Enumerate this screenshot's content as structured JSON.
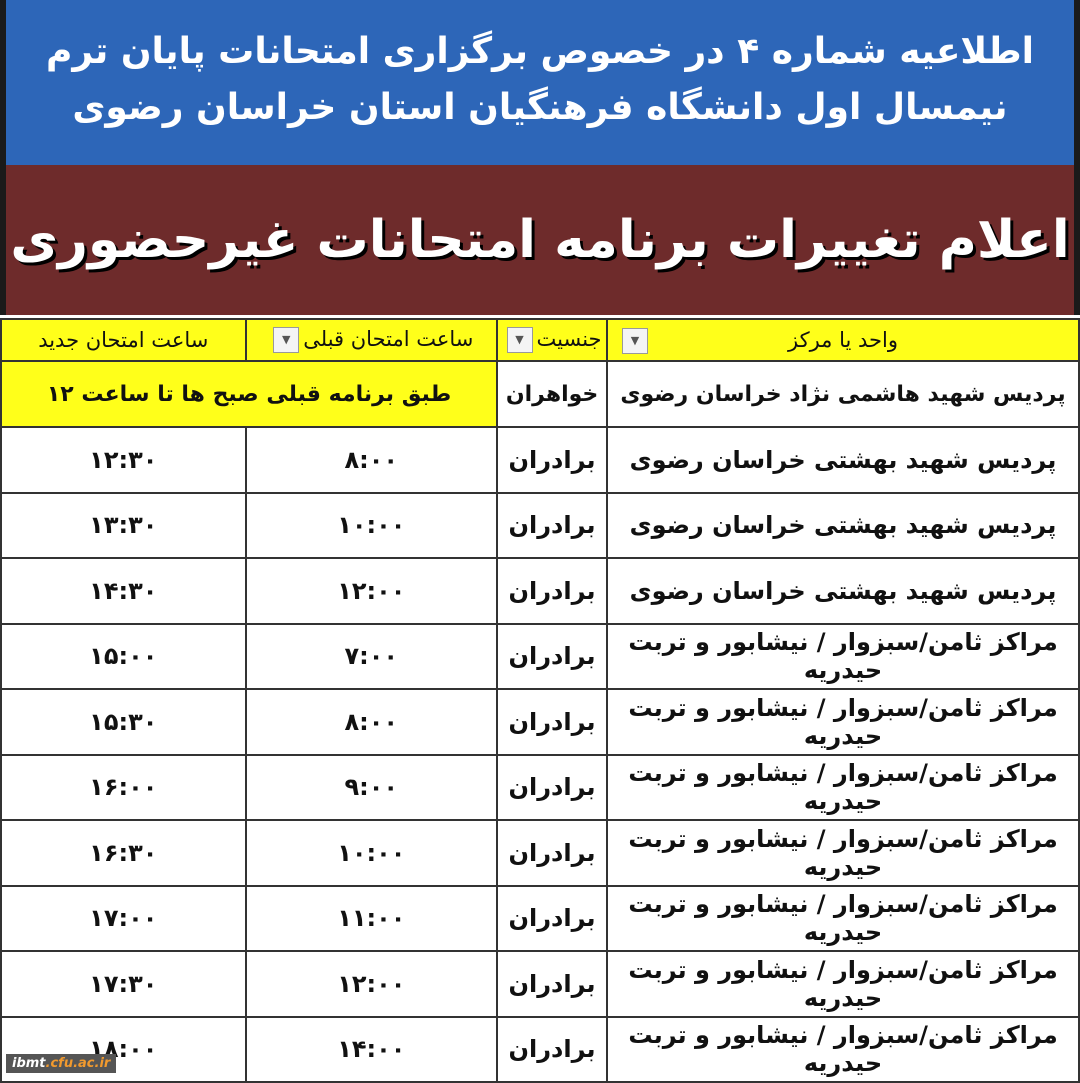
{
  "header": {
    "line1": "اطلاعیه شماره ۴  در خصوص برگزاری امتحانات پایان ترم",
    "line2": "نیمسال اول دانشگاه فرهنگیان استان خراسان رضوی"
  },
  "banner": {
    "title": "اعلام تغییرات برنامه امتحانات غیرحضوری"
  },
  "table": {
    "columns": [
      "واحد یا مرکز",
      "جنسیت",
      "ساعت امتحان قبلی",
      "ساعت امتحان  جدید"
    ],
    "first_row": {
      "center": "پردیس شهید هاشمی نژاد خراسان رضوی",
      "gender": "خواهران",
      "note": "طبق برنامه قبلی صبح ها تا ساعت ۱۲"
    },
    "rows": [
      {
        "center": "پردیس شهید بهشتی خراسان رضوی",
        "gender": "برادران",
        "old": "۸:۰۰",
        "new": "۱۲:۳۰"
      },
      {
        "center": "پردیس شهید بهشتی خراسان رضوی",
        "gender": "برادران",
        "old": "۱۰:۰۰",
        "new": "۱۳:۳۰"
      },
      {
        "center": "پردیس شهید بهشتی خراسان رضوی",
        "gender": "برادران",
        "old": "۱۲:۰۰",
        "new": "۱۴:۳۰"
      },
      {
        "center": "مراکز ثامن/سبزوار / نیشابور و تربت حیدریه",
        "gender": "برادران",
        "old": "۷:۰۰",
        "new": "۱۵:۰۰"
      },
      {
        "center": "مراکز ثامن/سبزوار / نیشابور و تربت حیدریه",
        "gender": "برادران",
        "old": "۸:۰۰",
        "new": "۱۵:۳۰"
      },
      {
        "center": "مراکز ثامن/سبزوار / نیشابور و تربت حیدریه",
        "gender": "برادران",
        "old": "۹:۰۰",
        "new": "۱۶:۰۰"
      },
      {
        "center": "مراکز ثامن/سبزوار / نیشابور و تربت حیدریه",
        "gender": "برادران",
        "old": "۱۰:۰۰",
        "new": "۱۶:۳۰"
      },
      {
        "center": "مراکز ثامن/سبزوار / نیشابور و تربت حیدریه",
        "gender": "برادران",
        "old": "۱۱:۰۰",
        "new": "۱۷:۰۰"
      },
      {
        "center": "مراکز ثامن/سبزوار / نیشابور و تربت حیدریه",
        "gender": "برادران",
        "old": "۱۲:۰۰",
        "new": "۱۷:۳۰"
      },
      {
        "center": "مراکز ثامن/سبزوار / نیشابور و تربت حیدریه",
        "gender": "برادران",
        "old": "۱۴:۰۰",
        "new": "۱۸:۰۰"
      }
    ]
  },
  "watermark": {
    "a": "ibmt",
    "b": ".cfu.ac.ir"
  }
}
